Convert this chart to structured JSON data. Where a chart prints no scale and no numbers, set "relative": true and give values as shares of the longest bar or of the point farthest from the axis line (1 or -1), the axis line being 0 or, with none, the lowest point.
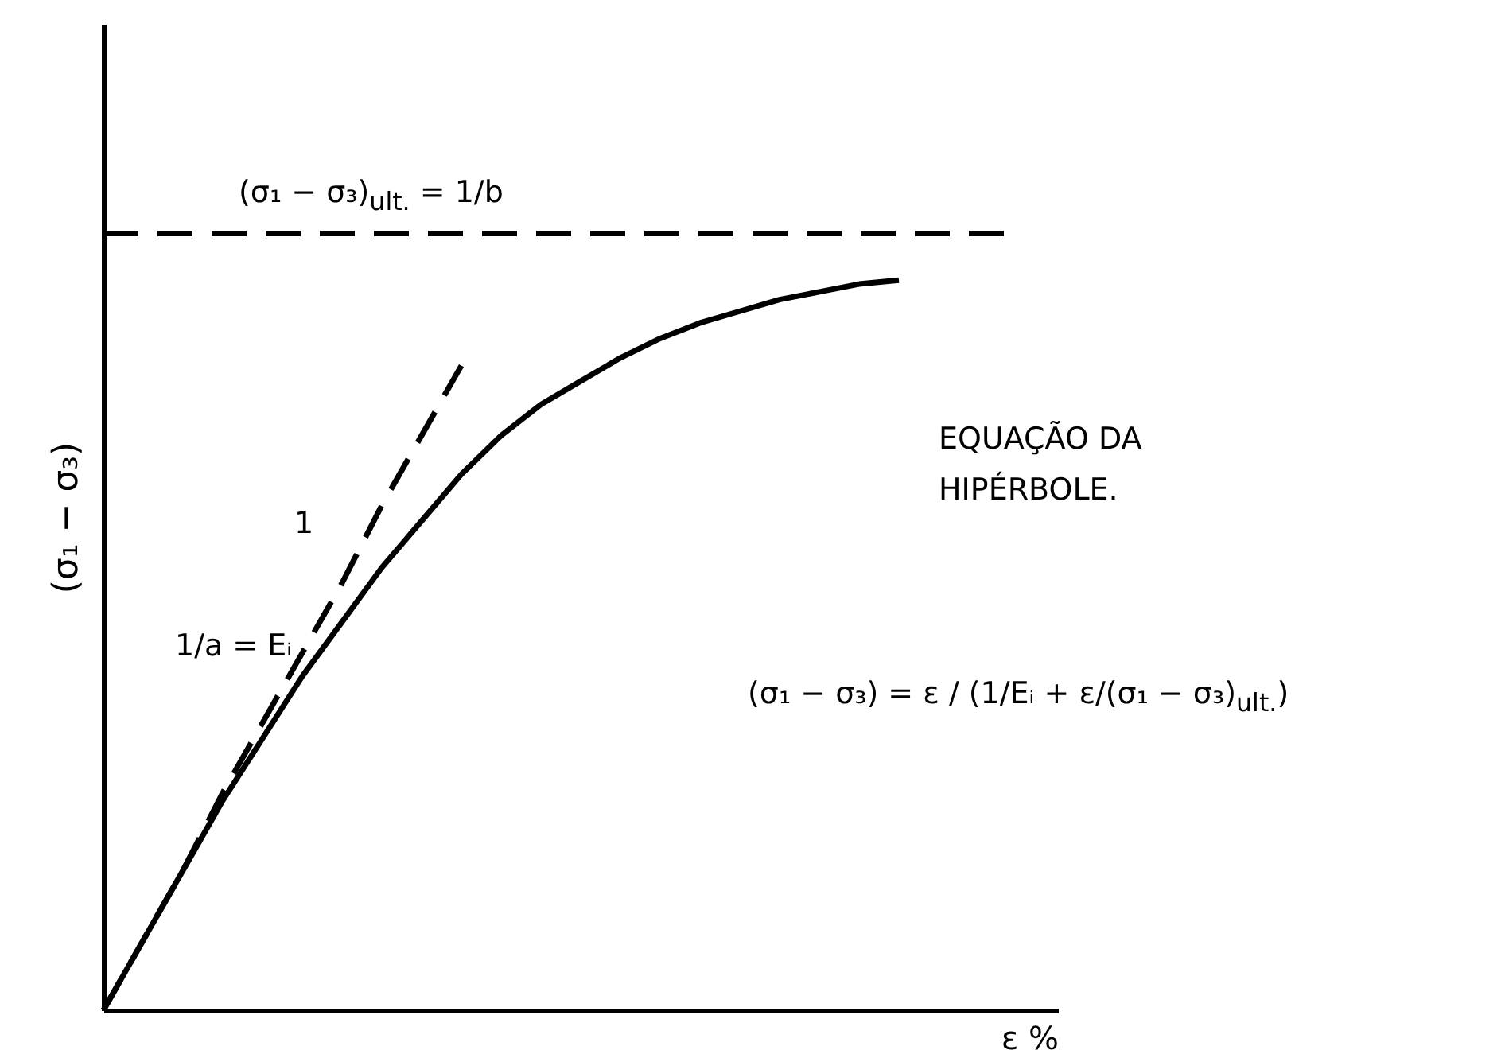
{
  "chart_data": {
    "type": "line",
    "relative": true,
    "xlabel": "ε %",
    "ylabel": "(σ₁ − σ₃)",
    "tick_labels": false,
    "grid": false,
    "categories": [
      null,
      null,
      null,
      null,
      null,
      null,
      null,
      null,
      null,
      null,
      null,
      null,
      null,
      null,
      null,
      null,
      null,
      null,
      null,
      null,
      null,
      null,
      null,
      null,
      null
    ],
    "series": [
      {
        "color": "#000000",
        "line_style": "solid",
        "values": [
          0,
          0.09,
          0.18,
          0.27,
          0.35,
          0.43,
          0.5,
          0.57,
          0.63,
          0.69,
          0.74,
          0.78,
          0.81,
          0.84,
          0.865,
          0.885,
          0.9,
          0.915,
          0.925,
          0.935,
          0.94,
          null,
          null,
          null,
          null
        ]
      },
      {
        "color": "#000000",
        "line_style": "dashed",
        "values": [
          0,
          0.09,
          0.18,
          0.28,
          0.37,
          0.46,
          0.55,
          0.65,
          0.74,
          0.83,
          null,
          null,
          null,
          null,
          null,
          null,
          null,
          null,
          null,
          null,
          null,
          null,
          null,
          null,
          null
        ]
      },
      {
        "color": "#000000",
        "line_style": "dashed",
        "values": [
          1,
          1,
          1,
          1,
          1,
          1,
          1,
          1,
          1,
          1,
          1,
          1,
          1,
          1,
          1,
          1,
          1,
          1,
          1,
          1,
          1,
          1,
          1,
          1,
          null
        ]
      }
    ],
    "annotations": [
      "(σ₁ − σ₃)$_{ult.}$ = 1/b",
      "1/a = Eᵢ",
      "1",
      "EQUAÇÃO DA HIPÉRBOLE.",
      "(σ₁ − σ₃) = ε / (1/Eᵢ + ε/(σ₁ − σ₃)$_{ult.}$)"
    ]
  }
}
